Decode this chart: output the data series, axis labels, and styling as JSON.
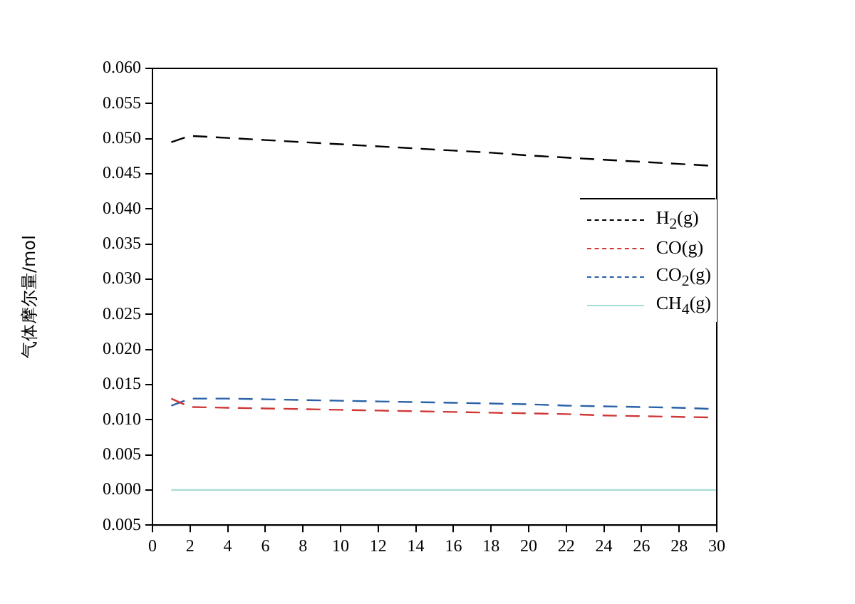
{
  "chart_data": {
    "type": "line",
    "ylabel": "气体摩尔量/mol",
    "x": [
      1,
      2,
      4,
      6,
      8,
      10,
      12,
      14,
      16,
      18,
      20,
      22,
      24,
      26,
      28,
      30
    ],
    "series": [
      {
        "name": "H$_{2}$(g)",
        "color": "#000000",
        "line_style": "dashed",
        "values": [
          0.0495,
          0.0504,
          0.0501,
          0.0498,
          0.0495,
          0.0492,
          0.0489,
          0.0486,
          0.0483,
          0.048,
          0.0476,
          0.0473,
          0.047,
          0.0467,
          0.0464,
          0.0461
        ]
      },
      {
        "name": "CO(g)",
        "color": "#d03838",
        "line_style": "dashed",
        "values": [
          0.013,
          0.0118,
          0.0117,
          0.0116,
          0.0115,
          0.0114,
          0.0113,
          0.0112,
          0.0111,
          0.011,
          0.0109,
          0.0108,
          0.0106,
          0.0105,
          0.0104,
          0.0103
        ]
      },
      {
        "name": "CO$_{2}$(g)",
        "color": "#2a62a8",
        "line_style": "dashed",
        "values": [
          0.012,
          0.013,
          0.013,
          0.0129,
          0.0128,
          0.0127,
          0.0126,
          0.0125,
          0.0124,
          0.0123,
          0.0122,
          0.012,
          0.0119,
          0.0118,
          0.0117,
          0.0115
        ]
      },
      {
        "name": "CH$_{4}$(g)",
        "color": "#a8dcd4",
        "line_style": "solid",
        "values": [
          0,
          0,
          0,
          0,
          0,
          0,
          0,
          0,
          0,
          0,
          0,
          0,
          0,
          0,
          0,
          0
        ]
      }
    ],
    "xlim": [
      0,
      30
    ],
    "xticks": [
      0,
      2,
      4,
      6,
      8,
      10,
      12,
      14,
      16,
      18,
      20,
      22,
      24,
      26,
      28,
      30
    ],
    "ylim": [
      -0.005,
      0.06
    ],
    "yticks": [
      {
        "value": -0.005,
        "label": "0.005"
      },
      {
        "value": 0,
        "label": "0.000"
      },
      {
        "value": 0.005,
        "label": "0.005"
      },
      {
        "value": 0.01,
        "label": "0.010"
      },
      {
        "value": 0.015,
        "label": "0.015"
      },
      {
        "value": 0.02,
        "label": "0.020"
      },
      {
        "value": 0.025,
        "label": "0.025"
      },
      {
        "value": 0.03,
        "label": "0.030"
      },
      {
        "value": 0.035,
        "label": "0.035"
      },
      {
        "value": 0.04,
        "label": "0.040"
      },
      {
        "value": 0.045,
        "label": "0.045"
      },
      {
        "value": 0.05,
        "label": "0.050"
      },
      {
        "value": 0.055,
        "label": "0.055"
      },
      {
        "value": 0.06,
        "label": "0.060"
      }
    ],
    "grid": false,
    "legend": "right",
    "marker": "none"
  }
}
